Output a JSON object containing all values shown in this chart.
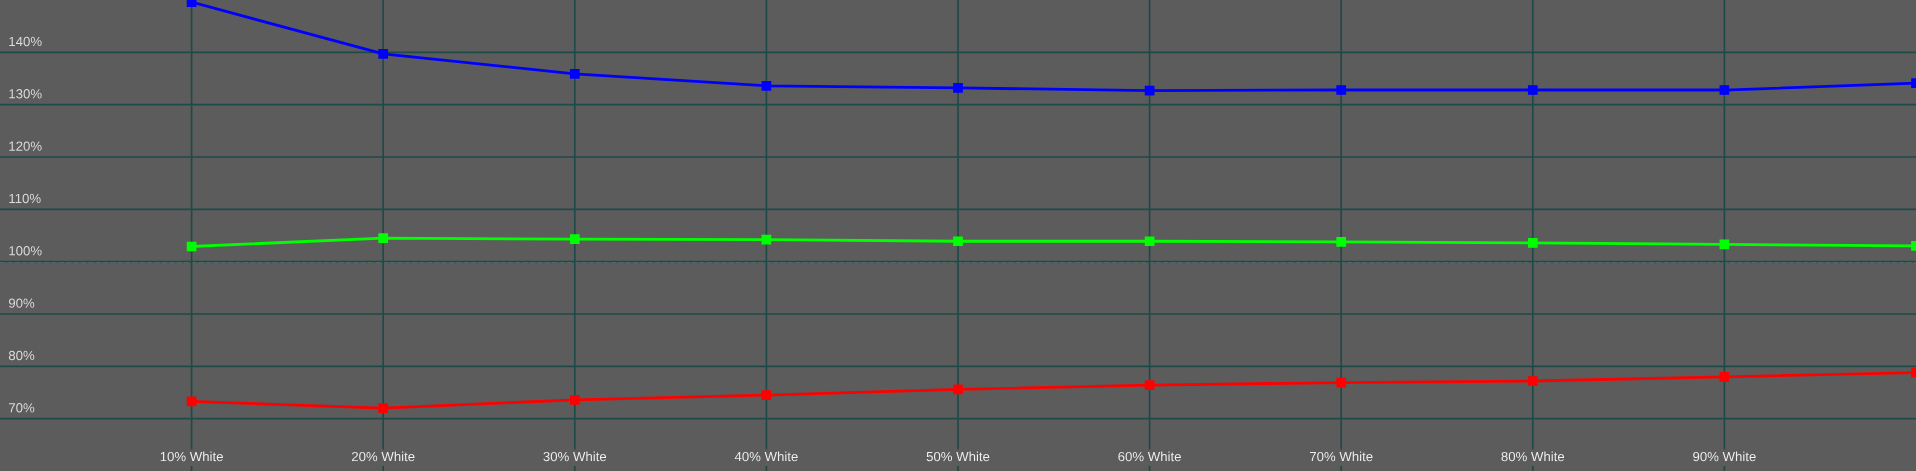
{
  "chart_data": {
    "type": "line",
    "x": [
      10,
      20,
      30,
      40,
      50,
      60,
      70,
      80,
      90,
      100
    ],
    "series": [
      {
        "color": "#0000ff",
        "values": [
          149.6,
          139.7,
          135.9,
          133.6,
          133.2,
          132.7,
          132.8,
          132.8,
          132.8,
          134.1
        ]
      },
      {
        "color": "#00ff00",
        "values": [
          102.9,
          104.5,
          104.3,
          104.2,
          103.9,
          103.9,
          103.8,
          103.6,
          103.3,
          103.0
        ]
      },
      {
        "color": "#ff0000",
        "values": [
          73.3,
          72.0,
          73.6,
          74.5,
          75.6,
          76.4,
          76.9,
          77.2,
          78.0,
          78.8
        ]
      }
    ],
    "xlim": [
      0,
      100
    ],
    "xticks": [
      {
        "value": 10,
        "label": "10% White"
      },
      {
        "value": 20,
        "label": "20% White"
      },
      {
        "value": 30,
        "label": "30% White"
      },
      {
        "value": 40,
        "label": "40% White"
      },
      {
        "value": 50,
        "label": "50% White"
      },
      {
        "value": 60,
        "label": "60% White"
      },
      {
        "value": 70,
        "label": "70% White"
      },
      {
        "value": 80,
        "label": "80% White"
      },
      {
        "value": 90,
        "label": "90% White"
      }
    ],
    "ylim": [
      60,
      150
    ],
    "yticks": [
      {
        "value": 70,
        "label": "70%"
      },
      {
        "value": 80,
        "label": "80%"
      },
      {
        "value": 90,
        "label": "90%"
      },
      {
        "value": 100,
        "label": "100%"
      },
      {
        "value": 110,
        "label": "110%"
      },
      {
        "value": 120,
        "label": "120%"
      },
      {
        "value": 130,
        "label": "130%"
      },
      {
        "value": 140,
        "label": "140%"
      }
    ],
    "ref_lines": [
      {
        "axis": "y",
        "value": 100,
        "color": "#ffffff",
        "line_style": "dashed"
      }
    ],
    "grid": true,
    "marker": "square",
    "line_style": "solid"
  }
}
